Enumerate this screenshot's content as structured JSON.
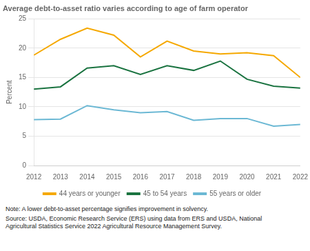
{
  "chart_data": {
    "type": "line",
    "title": "Average debt-to-asset ratio varies according to age of farm operator",
    "ylabel": "Percent",
    "x": [
      2012,
      2013,
      2014,
      2015,
      2016,
      2017,
      2018,
      2019,
      2020,
      2021,
      2022
    ],
    "series": [
      {
        "name": "44 years or younger",
        "color": "#F5A800",
        "values": [
          18.8,
          21.5,
          23.4,
          22.2,
          18.5,
          21.2,
          19.5,
          19.0,
          19.2,
          18.7,
          15.0
        ]
      },
      {
        "name": "45 to 54 years",
        "color": "#1A7340",
        "values": [
          13.0,
          13.4,
          16.6,
          17.0,
          15.5,
          17.0,
          16.2,
          17.8,
          14.7,
          13.5,
          13.2
        ]
      },
      {
        "name": "55 years or older",
        "color": "#6BB8D4",
        "values": [
          7.8,
          7.9,
          10.2,
          9.5,
          9.0,
          9.2,
          7.7,
          8.0,
          8.0,
          6.7,
          7.0
        ]
      }
    ],
    "xlim": [
      2012,
      2022
    ],
    "xticks": [
      2012,
      2013,
      2014,
      2015,
      2016,
      2017,
      2018,
      2019,
      2020,
      2021,
      2022
    ],
    "ylim": [
      0,
      25
    ],
    "yticks": [
      0,
      5,
      10,
      15,
      20,
      25
    ],
    "grid": "y",
    "legend": "bottom",
    "annotations": [
      "Note: A lower debt-to-asset percentage signifies improvement in solvency.",
      "Source: USDA, Economic Research Service (ERS) using data from ERS and USDA, National\nAgricultural Statistics Service 2022 Agricultural Resource Management Survey."
    ]
  }
}
